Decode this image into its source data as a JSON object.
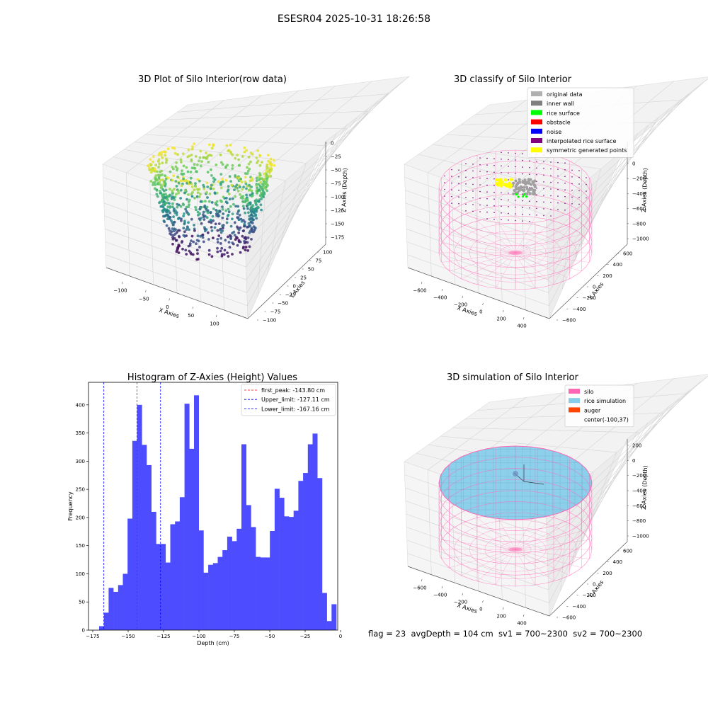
{
  "figure": {
    "suptitle": "ESESR04 2025-10-31 18:26:58",
    "status_line": "flag = 23  avgDepth = 104 cm  sv1 = 700~2300  sv2 = 700~2300"
  },
  "colors": {
    "silo": "#ff69b4",
    "rice_simulation": "#87ceeb",
    "auger": "#ff4500",
    "histogram_bar": "#4d4dff",
    "first_peak_line": "#ff0000",
    "limit_line": "#0000ff",
    "viridis_low": "#440154",
    "viridis_mid": "#21918c",
    "viridis_high": "#fde725"
  },
  "panel_raw": {
    "title": "3D Plot of Silo Interior(row data)",
    "xlabel": "X Axies",
    "ylabel": "Y Axies",
    "zlabel": "Z Axies (Depth)",
    "xticks": [
      "−100",
      "−50",
      "0",
      "50",
      "100"
    ],
    "yticks": [
      "−100",
      "−75",
      "−50",
      "−25",
      "0",
      "25",
      "50",
      "75",
      "100"
    ],
    "zticks": [
      "0",
      "−25",
      "−50",
      "−75",
      "−100",
      "−125",
      "−150",
      "−175"
    ]
  },
  "panel_classify": {
    "title": "3D classify of Silo Interior",
    "xlabel": "X Axies",
    "ylabel": "Y Axies",
    "zlabel": "Z Axies (Depth)",
    "xticks": [
      "−600",
      "−400",
      "−200",
      "0",
      "200",
      "400"
    ],
    "yticks": [
      "−600",
      "−400",
      "−200",
      "0",
      "200",
      "400",
      "600"
    ],
    "zticks": [
      "0",
      "−200",
      "−400",
      "−600",
      "−800",
      "−1000"
    ],
    "legend": [
      {
        "label": "original data",
        "color": "#b0b0b0"
      },
      {
        "label": "inner wall",
        "color": "#808080"
      },
      {
        "label": "rice surface",
        "color": "#00ff00"
      },
      {
        "label": "obstacle",
        "color": "#ff0000"
      },
      {
        "label": "noise",
        "color": "#0000ff"
      },
      {
        "label": "interpolated rice surface",
        "color": "#800080"
      },
      {
        "label": "symmetric generated points",
        "color": "#ffff00"
      }
    ]
  },
  "panel_sim": {
    "title": "3D simulation of Silo Interior",
    "xlabel": "X Axies",
    "ylabel": "Y Axies",
    "zlabel": "Z Axies (Depth)",
    "xticks": [
      "−600",
      "−400",
      "−200",
      "0",
      "200",
      "400"
    ],
    "yticks": [
      "−600",
      "−400",
      "−200",
      "0",
      "200",
      "400",
      "600"
    ],
    "zticks": [
      "200",
      "0",
      "−200",
      "−400",
      "−600",
      "−800",
      "−1000"
    ],
    "legend": [
      {
        "label": "silo",
        "color": "#ff69b4"
      },
      {
        "label": "rice simulation",
        "color": "#87ceeb"
      },
      {
        "label": "auger",
        "color": "#ff4500"
      },
      {
        "label": "center(-100,37)",
        "color": ""
      }
    ]
  },
  "chart_data": {
    "type": "bar",
    "title": "Histogram of Z-Axies (Height) Values",
    "xlabel": "Depth (cm)",
    "ylabel": "Frequency",
    "xlim": [
      -178,
      -2
    ],
    "ylim": [
      0,
      440
    ],
    "xticks": [
      -175,
      -150,
      -125,
      -100,
      -75,
      -50,
      -25,
      0
    ],
    "xtick_labels": [
      "−175",
      "−150",
      "−125",
      "−100",
      "−75",
      "−50",
      "−25",
      "0"
    ],
    "yticks": [
      0,
      50,
      100,
      150,
      200,
      250,
      300,
      350,
      400
    ],
    "bin_start": -170.5,
    "bin_width": 3.35,
    "values": [
      7,
      31,
      75,
      68,
      80,
      100,
      198,
      336,
      400,
      329,
      293,
      210,
      153,
      153,
      120,
      188,
      193,
      236,
      402,
      322,
      417,
      177,
      102,
      116,
      119,
      130,
      142,
      166,
      158,
      180,
      330,
      222,
      183,
      130,
      129,
      129,
      176,
      251,
      235,
      202,
      201,
      212,
      265,
      279,
      330,
      349,
      270,
      66,
      16,
      46
    ],
    "vlines": [
      {
        "label": "first_peak: -143.80 cm",
        "x": -143.8,
        "color": "#ff0000"
      },
      {
        "label": "Upper_limit: -127.11 cm",
        "x": -127.11,
        "color": "#0000ff"
      },
      {
        "label": "Lower_limit: -167.16 cm",
        "x": -167.16,
        "color": "#0000ff"
      }
    ],
    "grid": false,
    "legend_position": "top-right"
  }
}
